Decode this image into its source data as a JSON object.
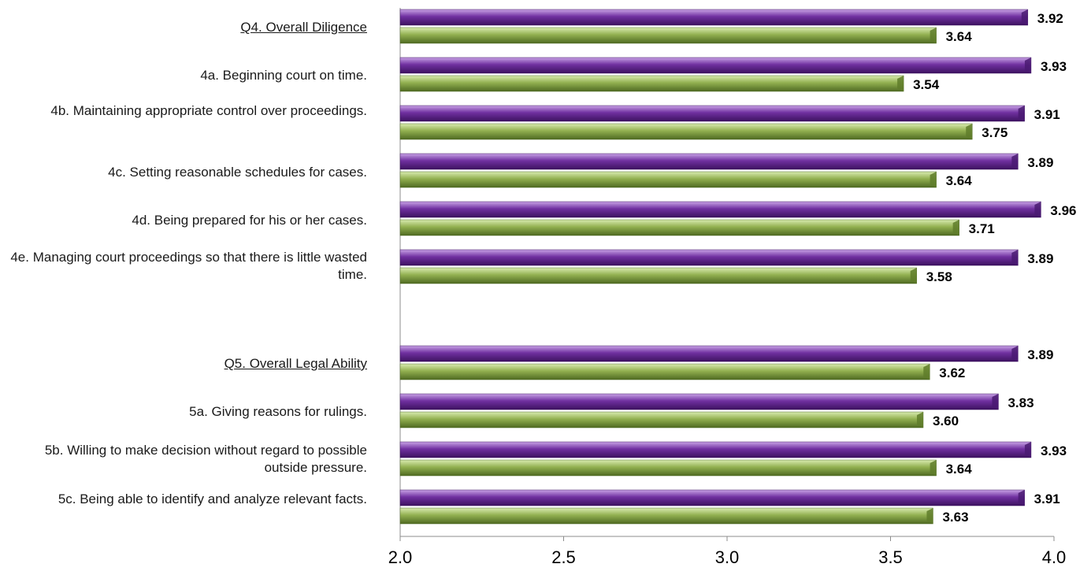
{
  "chart_data": {
    "type": "bar",
    "orientation": "horizontal",
    "categories": [
      "Q4. Overall Diligence",
      "4a. Beginning court on time.",
      "4b. Maintaining appropriate control over proceedings.",
      "4c. Setting reasonable schedules for cases.",
      "4d. Being prepared for his or her cases.",
      "4e. Managing court proceedings so that there is little wasted time.",
      "Q5. Overall Legal Ability",
      "5a. Giving reasons for rulings.",
      "5b. Willing to make decision without regard to possible outside pressure.",
      "5c. Being able to identify and analyze relevant facts."
    ],
    "header_categories": [
      0,
      6
    ],
    "series": [
      {
        "values": [
          3.92,
          3.93,
          3.91,
          3.89,
          3.96,
          3.89,
          3.89,
          3.83,
          3.93,
          3.91
        ],
        "color": "#7030a0"
      },
      {
        "values": [
          3.64,
          3.54,
          3.75,
          3.64,
          3.71,
          3.58,
          3.62,
          3.6,
          3.64,
          3.63
        ],
        "color": "#92b050"
      }
    ],
    "value_labels": [
      [
        "3.92",
        "3.93",
        "3.91",
        "3.89",
        "3.96",
        "3.89",
        "3.89",
        "3.83",
        "3.93",
        "3.91"
      ],
      [
        "3.64",
        "3.54",
        "3.75",
        "3.64",
        "3.71",
        "3.58",
        "3.62",
        "3.60",
        "3.64",
        "3.63"
      ]
    ],
    "xlim": [
      2.0,
      4.0
    ],
    "xticks": [
      "2.0",
      "2.5",
      "3.0",
      "3.5",
      "4.0"
    ],
    "xtick_values": [
      2.0,
      2.5,
      3.0,
      3.5,
      4.0
    ],
    "grid": false,
    "legend": "none"
  }
}
